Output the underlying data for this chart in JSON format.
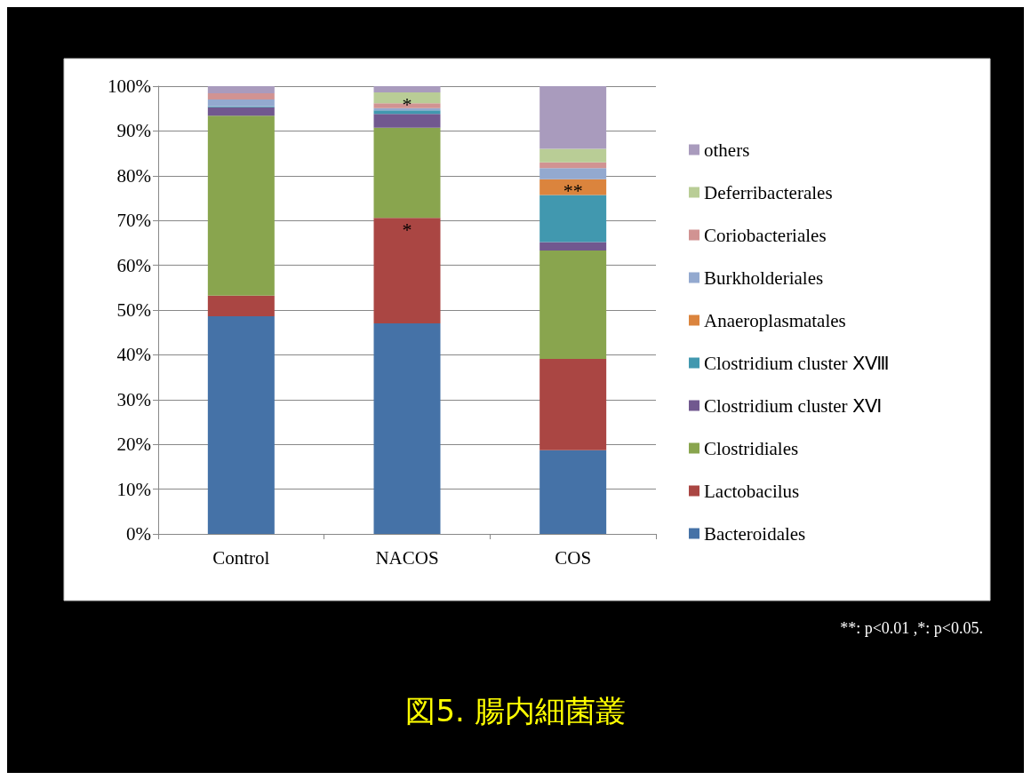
{
  "chart_data": {
    "type": "bar",
    "title": "図5. 腸内細菌叢",
    "stacked": true,
    "categories": [
      "Control",
      "NACOS",
      "COS"
    ],
    "series": [
      {
        "name": "Bacteroidales",
        "color": "#4572a7",
        "values": [
          48.6,
          47.0,
          18.7
        ]
      },
      {
        "name": "Lactobacilus",
        "color": "#aa4643",
        "values": [
          4.6,
          23.6,
          20.4
        ]
      },
      {
        "name": "Clostridiales",
        "color": "#89a54e",
        "values": [
          40.2,
          20.1,
          24.2
        ]
      },
      {
        "name": "Clostridium cluster ⅩⅥ",
        "color": "#71588f",
        "values": [
          1.9,
          3.1,
          1.9
        ]
      },
      {
        "name": "Clostridium cluster ⅩⅧ",
        "color": "#4198af",
        "values": [
          0.2,
          0.8,
          10.5
        ]
      },
      {
        "name": "Anaeroplasmatales",
        "color": "#db843d",
        "values": [
          0,
          0,
          3.5
        ]
      },
      {
        "name": "Burkholderiales",
        "color": "#93a9cf",
        "values": [
          1.5,
          0.5,
          2.5
        ]
      },
      {
        "name": "Coriobacteriales",
        "color": "#d19392",
        "values": [
          1.4,
          1.1,
          1.3
        ]
      },
      {
        "name": "Deferribacterales",
        "color": "#b9cd96",
        "values": [
          0,
          2.4,
          3.0
        ]
      },
      {
        "name": "others",
        "color": "#a99bbd",
        "values": [
          1.6,
          1.4,
          14.0
        ]
      }
    ],
    "ylim": [
      0,
      100
    ],
    "yticks": [
      {
        "value": 0,
        "label": "0%"
      },
      {
        "value": 10,
        "label": "10%"
      },
      {
        "value": 20,
        "label": "20%"
      },
      {
        "value": 30,
        "label": "30%"
      },
      {
        "value": 40,
        "label": "40%"
      },
      {
        "value": 50,
        "label": "50%"
      },
      {
        "value": 60,
        "label": "60%"
      },
      {
        "value": 70,
        "label": "70%"
      },
      {
        "value": 80,
        "label": "80%"
      },
      {
        "value": 90,
        "label": "90%"
      },
      {
        "value": 100,
        "label": "100%"
      }
    ],
    "grid": "y",
    "legend": "right",
    "annotations": [
      {
        "text": "*",
        "x": "NACOS",
        "y": 70.6
      },
      {
        "text": "*",
        "x": "NACOS",
        "y": 98.6
      },
      {
        "text": "**",
        "x": "COS",
        "y": 79.2
      },
      "**: p<0.01 ,*: p<0.05."
    ]
  }
}
